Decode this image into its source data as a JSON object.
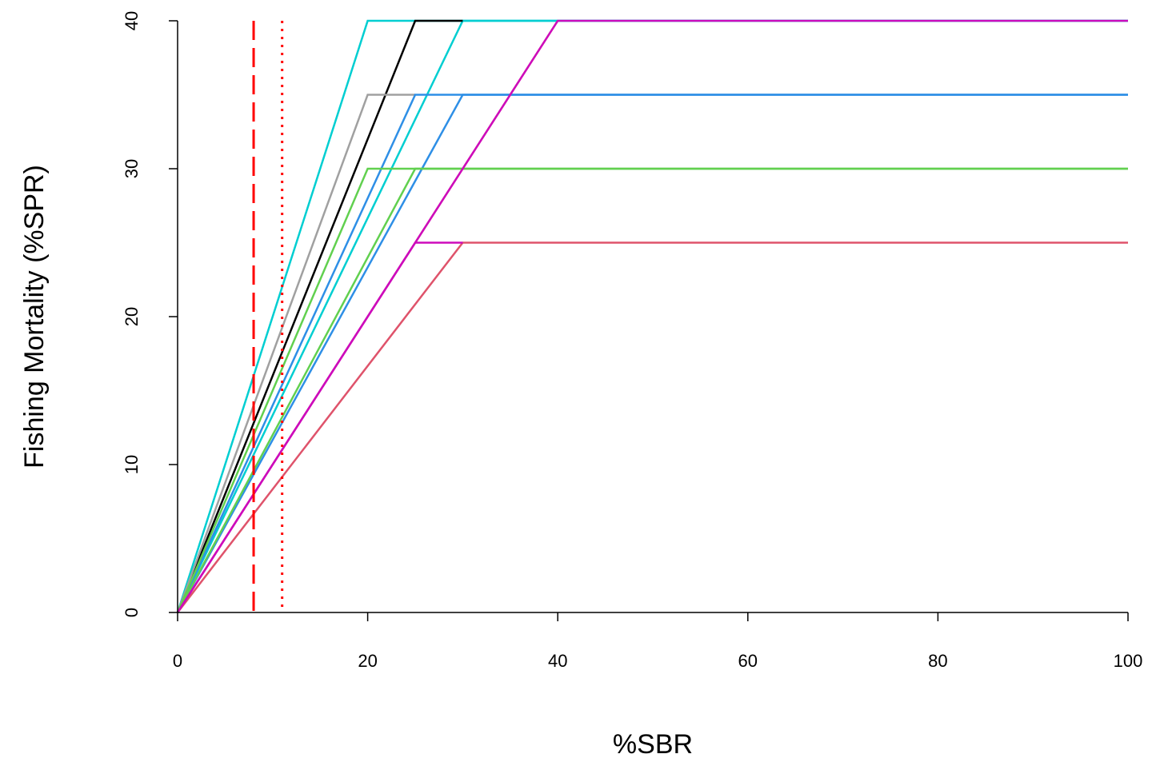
{
  "chart_data": {
    "type": "line",
    "title": "",
    "xlabel": "%SBR",
    "ylabel": "Fishing Mortality (%SPR)",
    "xlim": [
      0,
      100
    ],
    "ylim": [
      0,
      40
    ],
    "x_ticks": [
      "0",
      "20",
      "40",
      "60",
      "80",
      "100"
    ],
    "y_ticks": [
      "0",
      "10",
      "20",
      "30",
      "40"
    ],
    "grid": false,
    "legend": "none",
    "series": [
      {
        "color": "#00CED1",
        "x": [
          0,
          20,
          100
        ],
        "y": [
          0,
          40,
          40
        ]
      },
      {
        "color": "#00CED1",
        "x": [
          0,
          30,
          100
        ],
        "y": [
          0,
          40,
          40
        ]
      },
      {
        "color": "#000000",
        "x": [
          0,
          25,
          30
        ],
        "y": [
          0,
          40,
          40
        ]
      },
      {
        "color": "#A0A0A0",
        "x": [
          0,
          20,
          25
        ],
        "y": [
          0,
          35,
          35
        ]
      },
      {
        "color": "#2E8FE6",
        "x": [
          0,
          25,
          100
        ],
        "y": [
          0,
          35,
          35
        ]
      },
      {
        "color": "#2E8FE6",
        "x": [
          0,
          30,
          100
        ],
        "y": [
          0,
          35,
          35
        ]
      },
      {
        "color": "#61D04F",
        "x": [
          0,
          20,
          100
        ],
        "y": [
          0,
          30,
          30
        ]
      },
      {
        "color": "#61D04F",
        "x": [
          0,
          25,
          100
        ],
        "y": [
          0,
          30,
          30
        ]
      },
      {
        "color": "#DF536B",
        "x": [
          0,
          30,
          100
        ],
        "y": [
          0,
          25,
          25
        ]
      },
      {
        "color": "#DF536B",
        "x": [
          0,
          30,
          40
        ],
        "y": [
          0,
          30,
          40
        ]
      },
      {
        "color": "#CD0BBC",
        "x": [
          0,
          25,
          30
        ],
        "y": [
          0,
          25,
          25
        ]
      },
      {
        "color": "#CD0BBC",
        "x": [
          0,
          40,
          100
        ],
        "y": [
          0,
          40,
          40
        ]
      }
    ],
    "vlines": [
      {
        "x": 8,
        "style": "dashed",
        "color": "#FF0000"
      },
      {
        "x": 11,
        "style": "dotted",
        "color": "#FF0000"
      }
    ]
  }
}
